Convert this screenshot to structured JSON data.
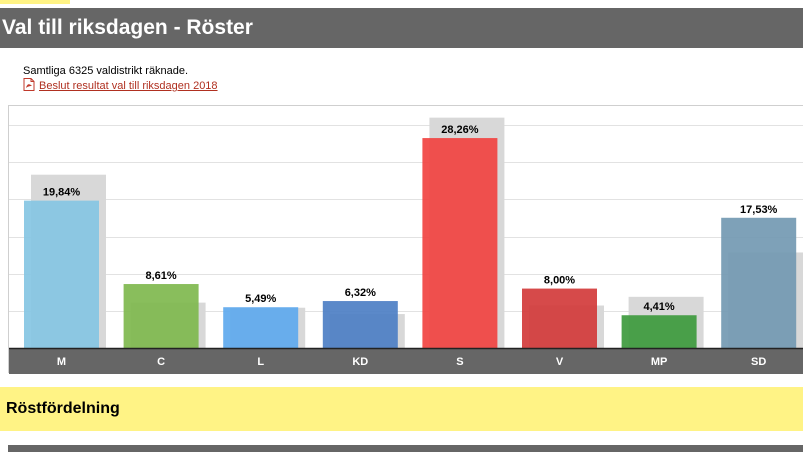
{
  "header": {
    "title": "Val till riksdagen - Röster"
  },
  "status": {
    "counted_text": "Samtliga 6325 valdistrikt räknade."
  },
  "link": {
    "label": "Beslut resultat val till riksdagen 2018",
    "icon": "pdf-icon"
  },
  "section": {
    "title": "Röstfördelning"
  },
  "colors": {
    "header_bg": "#666666",
    "section_bg": "#fff385",
    "axis_bar": "#666666",
    "previous_bar": "#d8d8d8"
  },
  "chart_data": {
    "type": "bar",
    "categories": [
      "M",
      "C",
      "L",
      "KD",
      "S",
      "V",
      "MP",
      "SD"
    ],
    "series": [
      {
        "values": [
          19.84,
          8.61,
          5.49,
          6.32,
          28.26,
          8.0,
          4.41,
          17.53
        ],
        "labels": [
          "19,84%",
          "8,61%",
          "5,49%",
          "6,32%",
          "28,26%",
          "8,00%",
          "4,41%",
          "17,53%"
        ],
        "colors": [
          "#86c5e3",
          "#7fb84e",
          "#5ea9ee",
          "#4d7fc4",
          "#f14341",
          "#d23b3b",
          "#3d9a3d",
          "#7399b2"
        ]
      },
      {
        "values": [
          23.33,
          6.11,
          5.42,
          4.57,
          31.01,
          5.72,
          6.89,
          12.86
        ],
        "colors": [
          "#d8d8d8",
          "#d8d8d8",
          "#d8d8d8",
          "#d8d8d8",
          "#d8d8d8",
          "#d8d8d8",
          "#d8d8d8",
          "#d8d8d8"
        ]
      }
    ],
    "ylim": [
      0,
      31.5
    ],
    "grid": true,
    "legend": "none"
  }
}
